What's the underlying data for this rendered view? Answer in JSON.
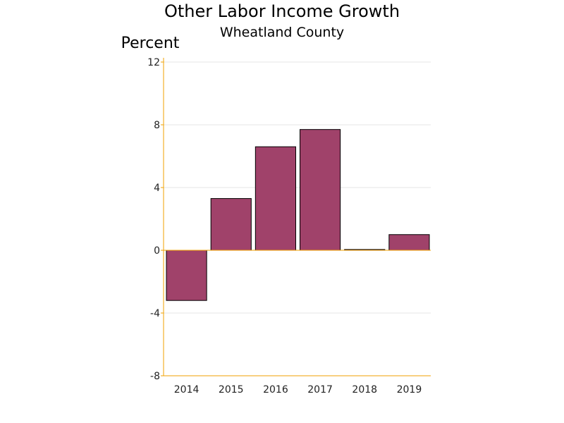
{
  "chart_data": {
    "type": "bar",
    "title": "Other Labor Income Growth",
    "subtitle": "Wheatland County",
    "ylabel": "Percent",
    "xlabel": "",
    "categories": [
      "2014",
      "2015",
      "2016",
      "2017",
      "2018",
      "2019"
    ],
    "values": [
      -3.2,
      3.3,
      6.6,
      7.7,
      0.05,
      1.0
    ],
    "ylim": [
      -8,
      12
    ],
    "yticks": [
      -8,
      -4,
      0,
      4,
      8,
      12
    ],
    "grid": true,
    "legend": "none",
    "colors": {
      "bar_fill": "#a0426a",
      "bar_stroke": "#000000",
      "axis": "#f0a000",
      "grid": "#e6e6e6"
    }
  }
}
